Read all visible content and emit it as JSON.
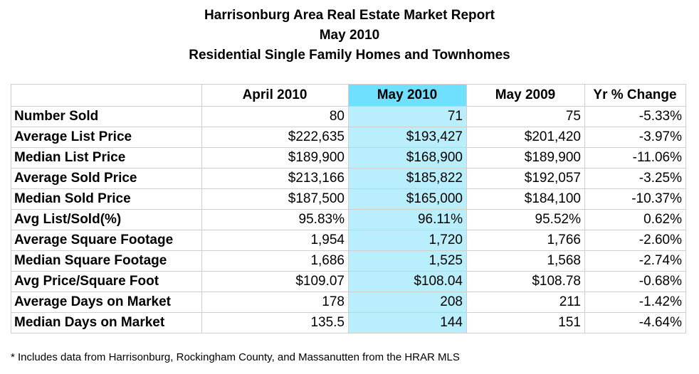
{
  "title": {
    "line1": "Harrisonburg Area Real Estate Market Report",
    "line2": "May 2010",
    "line3": "Residential Single Family Homes and Townhomes"
  },
  "table": {
    "columns": [
      "",
      "April 2010",
      "May 2010",
      "May 2009",
      "Yr % Change"
    ],
    "highlight_color": "#6fe0ff",
    "highlight_column_fill": "#b9effd",
    "rows": [
      {
        "label": "Number Sold",
        "values": [
          "80",
          "71",
          "75",
          "-5.33%"
        ]
      },
      {
        "label": "Average List Price",
        "values": [
          "$222,635",
          "$193,427",
          "$201,420",
          "-3.97%"
        ]
      },
      {
        "label": "Median List Price",
        "values": [
          "$189,900",
          "$168,900",
          "$189,900",
          "-11.06%"
        ]
      },
      {
        "label": "Average Sold Price",
        "values": [
          "$213,166",
          "$185,822",
          "$192,057",
          "-3.25%"
        ]
      },
      {
        "label": "Median Sold Price",
        "values": [
          "$187,500",
          "$165,000",
          "$184,100",
          "-10.37%"
        ]
      },
      {
        "label": "Avg List/Sold(%)",
        "values": [
          "95.83%",
          "96.11%",
          "95.52%",
          "0.62%"
        ]
      },
      {
        "label": "Average Square Footage",
        "values": [
          "1,954",
          "1,720",
          "1,766",
          "-2.60%"
        ]
      },
      {
        "label": "Median Square Footage",
        "values": [
          "1,686",
          "1,525",
          "1,568",
          "-2.74%"
        ]
      },
      {
        "label": "Avg Price/Square Foot",
        "values": [
          "$109.07",
          "$108.04",
          "$108.78",
          "-0.68%"
        ]
      },
      {
        "label": "Average Days on Market",
        "values": [
          "178",
          "208",
          "211",
          "-1.42%"
        ]
      },
      {
        "label": "Median Days on Market",
        "values": [
          "135.5",
          "144",
          "151",
          "-4.64%"
        ]
      }
    ]
  },
  "footnote": "* Includes data from Harrisonburg, Rockingham County, and Massanutten from the HRAR MLS"
}
